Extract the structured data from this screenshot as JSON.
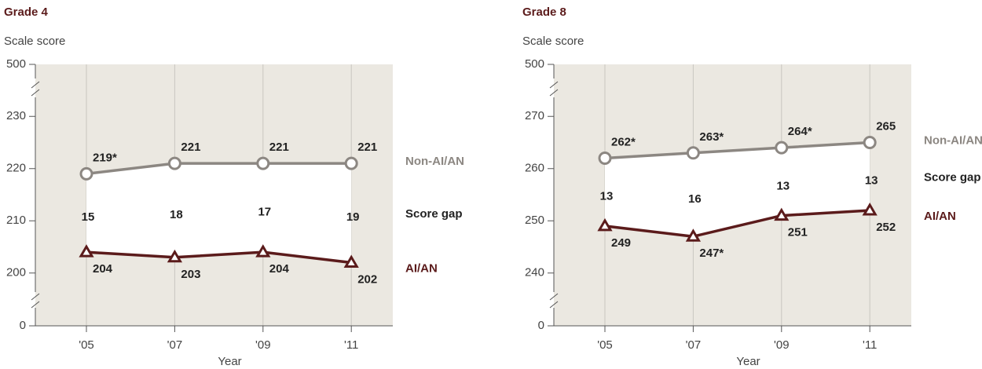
{
  "chart_data": [
    {
      "type": "line",
      "title": "Grade 4",
      "y_label": "Scale score",
      "x_label": "Year",
      "categories": [
        "'05",
        "'07",
        "'09",
        "'11"
      ],
      "series": [
        {
          "name": "Non-AI/AN",
          "color": "#8c8782",
          "values": [
            219,
            221,
            221,
            221
          ],
          "value_labels": [
            "219*",
            "221",
            "221",
            "221"
          ]
        },
        {
          "name": "AI/AN",
          "color": "#5b1b1b",
          "values": [
            204,
            203,
            204,
            202
          ],
          "value_labels": [
            "204",
            "203",
            "204",
            "202"
          ]
        }
      ],
      "gap": {
        "name": "Score gap",
        "values": [
          15,
          18,
          17,
          19
        ]
      },
      "ylim": [
        195,
        235
      ],
      "yticks": [
        200,
        210,
        220,
        230
      ],
      "ybreak_ticks": [
        0,
        500
      ]
    },
    {
      "type": "line",
      "title": "Grade 8",
      "y_label": "Scale score",
      "x_label": "Year",
      "categories": [
        "'05",
        "'07",
        "'09",
        "'11"
      ],
      "series": [
        {
          "name": "Non-AI/AN",
          "color": "#8c8782",
          "values": [
            262,
            263,
            264,
            265
          ],
          "value_labels": [
            "262*",
            "263*",
            "264*",
            "265"
          ]
        },
        {
          "name": "AI/AN",
          "color": "#5b1b1b",
          "values": [
            249,
            247,
            251,
            252
          ],
          "value_labels": [
            "249",
            "247*",
            "251",
            "252"
          ]
        }
      ],
      "gap": {
        "name": "Score gap",
        "values": [
          13,
          16,
          13,
          13
        ]
      },
      "ylim": [
        235,
        275
      ],
      "yticks": [
        240,
        250,
        260,
        270
      ],
      "ybreak_ticks": [
        0,
        500
      ]
    }
  ]
}
